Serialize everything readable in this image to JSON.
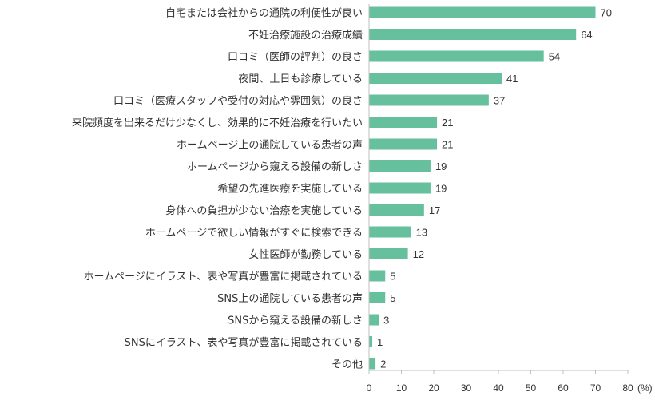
{
  "chart_data": {
    "type": "bar",
    "orientation": "horizontal",
    "categories": [
      "自宅または会社からの通院の利便性が良い",
      "不妊治療施設の治療成績",
      "口コミ（医師の評判）の良さ",
      "夜間、土日も診療している",
      "口コミ（医療スタッフや受付の対応や雰囲気）の良さ",
      "来院頻度を出来るだけ少なくし、効果的に不妊治療を行いたい",
      "ホームページ上の通院している患者の声",
      "ホームページから窺える設備の新しさ",
      "希望の先進医療を実施している",
      "身体への負担が少ない治療を実施している",
      "ホームページで欲しい情報がすぐに検索できる",
      "女性医師が勤務している",
      "ホームページにイラスト、表や写真が豊富に掲載されている",
      "SNS上の通院している患者の声",
      "SNSから窺える設備の新しさ",
      "SNSにイラスト、表や写真が豊富に掲載されている",
      "その他"
    ],
    "values": [
      70,
      64,
      54,
      41,
      37,
      21,
      21,
      19,
      19,
      17,
      13,
      12,
      5,
      5,
      3,
      1,
      2
    ],
    "xlim": [
      0,
      80
    ],
    "xticks": [
      0,
      10,
      20,
      30,
      40,
      50,
      60,
      70,
      80
    ],
    "xunit": "(%)",
    "bar_color": "#66c09e",
    "grid": false,
    "legend": "none"
  }
}
